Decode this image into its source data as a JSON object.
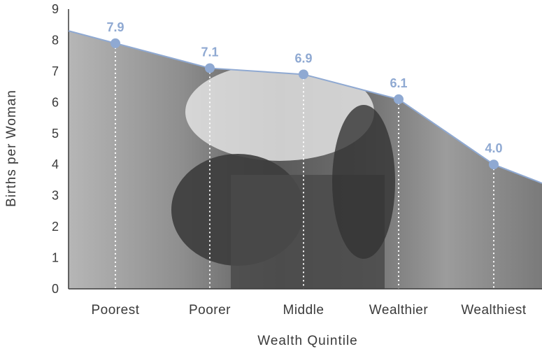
{
  "chart_data": {
    "type": "line",
    "xlabel": "Wealth Quintile",
    "ylabel": "Births per Woman",
    "categories": [
      "Poorest",
      "Poorer",
      "Middle",
      "Wealthier",
      "Wealthiest"
    ],
    "values": [
      7.9,
      7.1,
      6.9,
      6.1,
      4.0
    ],
    "data_labels": [
      "7.9",
      "7.1",
      "6.9",
      "6.1",
      "4.0"
    ],
    "yticks": [
      "0",
      "1",
      "2",
      "3",
      "4",
      "5",
      "6",
      "7",
      "8",
      "9"
    ],
    "ylim": [
      0,
      9
    ],
    "fill_left_value": 8.3,
    "fill_right_value": 3.4,
    "grid": false,
    "background": "grayscale photograph of a pregnant woman beneath the line",
    "colors": {
      "line": "#8fa9d2",
      "marker": "#8fa9d2",
      "data_label": "#8fa9d2",
      "guides": "#ffffff",
      "axis": "#3a3a3a",
      "photo_fill": "#9a9a9a"
    }
  }
}
